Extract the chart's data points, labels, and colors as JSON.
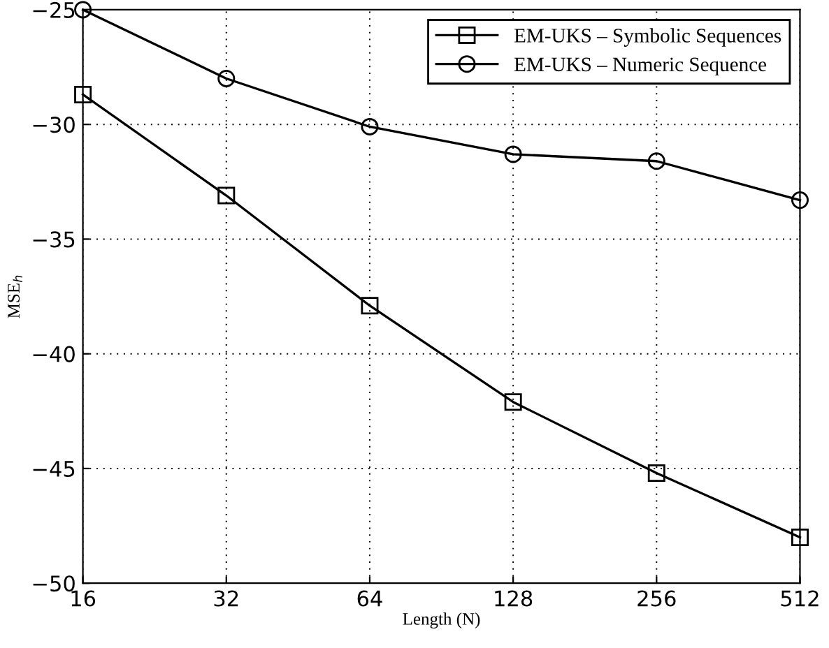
{
  "chart_data": {
    "type": "line",
    "xlabel": "Length (N)",
    "ylabel": "MSE$_{h}$",
    "x": [
      16,
      32,
      64,
      128,
      256,
      512
    ],
    "log": "x",
    "xlim": [
      16,
      512
    ],
    "xticks": [
      16,
      32,
      64,
      128,
      256,
      512
    ],
    "ylim": [
      -50,
      -25
    ],
    "yticks": [
      -50,
      -45,
      -40,
      -35,
      -30,
      -25
    ],
    "grid": true,
    "legend": "top right",
    "line_style": "solid",
    "series": [
      {
        "name": "EM-UKS – Symbolic Sequences",
        "color": "#000000",
        "marker": "square",
        "values": [
          -28.7,
          -33.1,
          -37.9,
          -42.1,
          -45.2,
          -48.0
        ]
      },
      {
        "name": "EM-UKS – Numeric Sequence",
        "color": "#000000",
        "marker": "circle",
        "values": [
          -25.0,
          -28.0,
          -30.1,
          -31.3,
          -31.6,
          -33.3
        ]
      }
    ]
  }
}
